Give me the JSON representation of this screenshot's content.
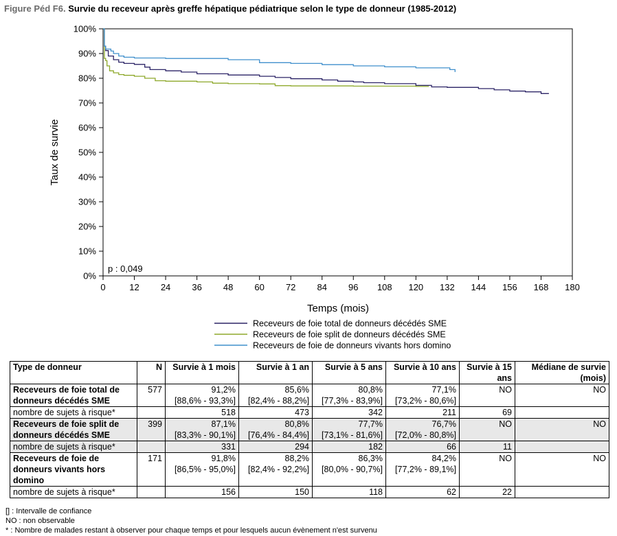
{
  "title": {
    "prefix": "Figure Péd F6.",
    "text": "Survie du receveur après greffe hépatique pédiatrique selon le type de donneur (1985-2012)"
  },
  "chart_data": {
    "type": "line",
    "xlabel": "Temps (mois)",
    "ylabel": "Taux de survie",
    "xlim": [
      0,
      180
    ],
    "ylim": [
      0,
      100
    ],
    "xticks": [
      "0",
      "12",
      "24",
      "36",
      "48",
      "60",
      "72",
      "84",
      "96",
      "108",
      "120",
      "132",
      "144",
      "156",
      "168",
      "180"
    ],
    "yticks": [
      "0%",
      "10%",
      "20%",
      "30%",
      "40%",
      "50%",
      "60%",
      "70%",
      "80%",
      "90%",
      "100%"
    ],
    "annotation": "p : 0,049",
    "grid": false,
    "legend_position": "bottom",
    "series": [
      {
        "name": "Receveurs de foie total de donneurs décédés SME",
        "color": "#2b2366",
        "points": [
          [
            0,
            100
          ],
          [
            0.5,
            93
          ],
          [
            1,
            91.2
          ],
          [
            2,
            89
          ],
          [
            4,
            87.5
          ],
          [
            6,
            86.5
          ],
          [
            8,
            86
          ],
          [
            12,
            85.6
          ],
          [
            16,
            84.5
          ],
          [
            18,
            83.5
          ],
          [
            24,
            83
          ],
          [
            30,
            82.5
          ],
          [
            36,
            81.8
          ],
          [
            48,
            81.3
          ],
          [
            60,
            80.8
          ],
          [
            66,
            80.3
          ],
          [
            72,
            79.8
          ],
          [
            84,
            79.3
          ],
          [
            90,
            78.8
          ],
          [
            96,
            78.5
          ],
          [
            100,
            78.2
          ],
          [
            108,
            77.8
          ],
          [
            120,
            77.1
          ],
          [
            126,
            76.5
          ],
          [
            132,
            76.3
          ],
          [
            144,
            75.8
          ],
          [
            150,
            75.3
          ],
          [
            156,
            74.8
          ],
          [
            162,
            74.5
          ],
          [
            168,
            73.8
          ],
          [
            171,
            73.8
          ]
        ]
      },
      {
        "name": "Receveurs de foie split de donneurs décédés SME",
        "color": "#8da82a",
        "points": [
          [
            0,
            100
          ],
          [
            0.5,
            88
          ],
          [
            1,
            87.1
          ],
          [
            1.5,
            85
          ],
          [
            2.5,
            83
          ],
          [
            4,
            82.2
          ],
          [
            6,
            81.5
          ],
          [
            8,
            81.2
          ],
          [
            12,
            80.8
          ],
          [
            16,
            80
          ],
          [
            20,
            79
          ],
          [
            24,
            78.8
          ],
          [
            36,
            78.5
          ],
          [
            42,
            78
          ],
          [
            48,
            77.8
          ],
          [
            60,
            77.7
          ],
          [
            66,
            77
          ],
          [
            72,
            76.9
          ],
          [
            96,
            76.8
          ],
          [
            120,
            76.7
          ],
          [
            125,
            76.7
          ]
        ]
      },
      {
        "name": "Receveurs de foie de donneurs vivants hors domino",
        "color": "#3f8fcc",
        "points": [
          [
            0,
            100
          ],
          [
            0.5,
            93
          ],
          [
            1,
            91.8
          ],
          [
            3,
            91
          ],
          [
            4,
            90
          ],
          [
            6,
            89
          ],
          [
            8,
            88.5
          ],
          [
            12,
            88.2
          ],
          [
            24,
            88
          ],
          [
            48,
            87.5
          ],
          [
            60,
            86.3
          ],
          [
            72,
            86
          ],
          [
            84,
            85.5
          ],
          [
            96,
            85
          ],
          [
            108,
            84.6
          ],
          [
            120,
            84.2
          ],
          [
            130,
            84.2
          ],
          [
            133,
            83.5
          ],
          [
            135,
            82.5
          ]
        ]
      }
    ]
  },
  "table": {
    "headers": [
      "Type de donneur",
      "N",
      "Survie à 1 mois",
      "Survie à 1 an",
      "Survie à 5 ans",
      "Survie à 10 ans",
      "Survie à 15 ans",
      "Médiane de survie (mois)"
    ],
    "rows": [
      {
        "label": "Receveurs de foie total de donneurs décédés SME",
        "n": "577",
        "values": [
          "91,2%",
          "85,6%",
          "80,8%",
          "77,1%"
        ],
        "ci": [
          "[88,6% - 93,3%]",
          "[82,4% - 88,2%]",
          "[77,3% - 83,9%]",
          "[73,2% - 80,6%]"
        ],
        "s15": "NO",
        "median": "NO",
        "risk_label": "nombre de sujets à risque*",
        "risk": [
          "518",
          "473",
          "342",
          "211",
          "69"
        ]
      },
      {
        "label": "Receveurs de foie split de donneurs décédés SME",
        "n": "399",
        "values": [
          "87,1%",
          "80,8%",
          "77,7%",
          "76,7%"
        ],
        "ci": [
          "[83,3% - 90,1%]",
          "[76,4% - 84,4%]",
          "[73,1% - 81,6%]",
          "[72,0% - 80,8%]"
        ],
        "s15": "NO",
        "median": "NO",
        "risk_label": "nombre de sujets à risque*",
        "risk": [
          "331",
          "294",
          "182",
          "66",
          "11"
        ]
      },
      {
        "label": "Receveurs de foie de donneurs vivants hors domino",
        "n": "171",
        "values": [
          "91,8%",
          "88,2%",
          "86,3%",
          "84,2%"
        ],
        "ci": [
          "[86,5% - 95,0%]",
          "[82,4% - 92,2%]",
          "[80,0% - 90,7%]",
          "[77,2% - 89,1%]"
        ],
        "s15": "NO",
        "median": "NO",
        "risk_label": "nombre de sujets à risque*",
        "risk": [
          "156",
          "150",
          "118",
          "62",
          "22"
        ]
      }
    ]
  },
  "notes": [
    "[] : Intervalle de confiance",
    "NO : non observable",
    "* : Nombre de malades restant à observer pour chaque temps et pour lesquels aucun évènement n'est survenu"
  ]
}
